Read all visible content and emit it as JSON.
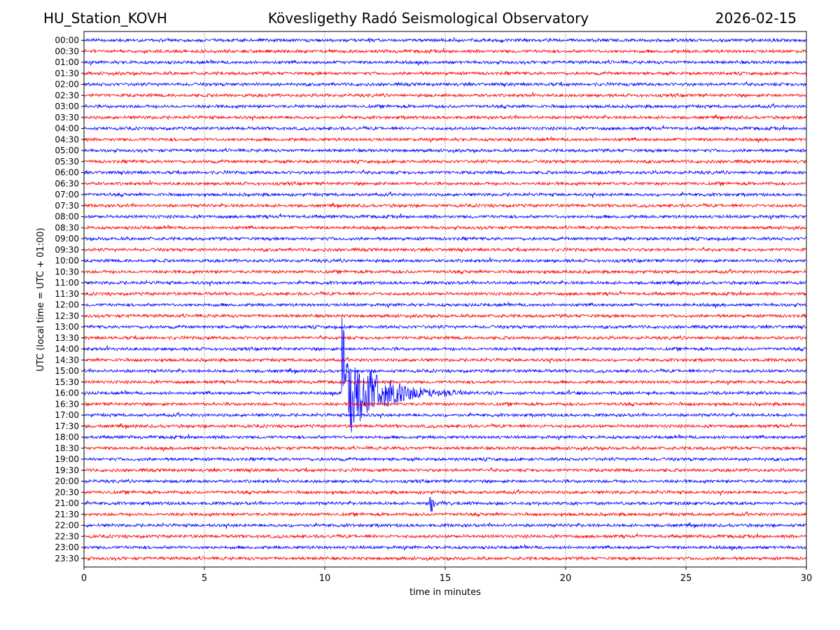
{
  "header": {
    "left": "HU_Station_KOVH",
    "center": "Kövesligethy Radó Seismological Observatory",
    "right": "2026-02-15"
  },
  "chart_data": {
    "type": "line",
    "title": "Kövesligethy Radó Seismological Observatory",
    "xlabel": "time in minutes",
    "ylabel": "UTC (local time = UTC + 01:00)",
    "xlim": [
      0,
      30
    ],
    "x_ticks": [
      "0",
      "5",
      "10",
      "15",
      "20",
      "25",
      "30"
    ],
    "grid_x": true,
    "colors": {
      "even": "#0000ff",
      "odd": "#ff0000"
    },
    "rows": [
      "00:00",
      "00:30",
      "01:00",
      "01:30",
      "02:00",
      "02:30",
      "03:00",
      "03:30",
      "04:00",
      "04:30",
      "05:00",
      "05:30",
      "06:00",
      "06:30",
      "07:00",
      "07:30",
      "08:00",
      "08:30",
      "09:00",
      "09:30",
      "10:00",
      "10:30",
      "11:00",
      "11:30",
      "12:00",
      "12:30",
      "13:00",
      "13:30",
      "14:00",
      "14:30",
      "15:00",
      "15:30",
      "16:00",
      "16:30",
      "17:00",
      "17:30",
      "18:00",
      "18:30",
      "19:00",
      "19:30",
      "20:00",
      "20:30",
      "21:00",
      "21:30",
      "22:00",
      "22:30",
      "23:00",
      "23:30"
    ],
    "events": [
      {
        "row": "16:00",
        "onset_min": 10.7,
        "duration_min": 4.5,
        "peak_rows": 9
      },
      {
        "row": "21:00",
        "onset_min": 14.35,
        "duration_min": 1.5,
        "peak_rows": 1
      }
    ]
  }
}
